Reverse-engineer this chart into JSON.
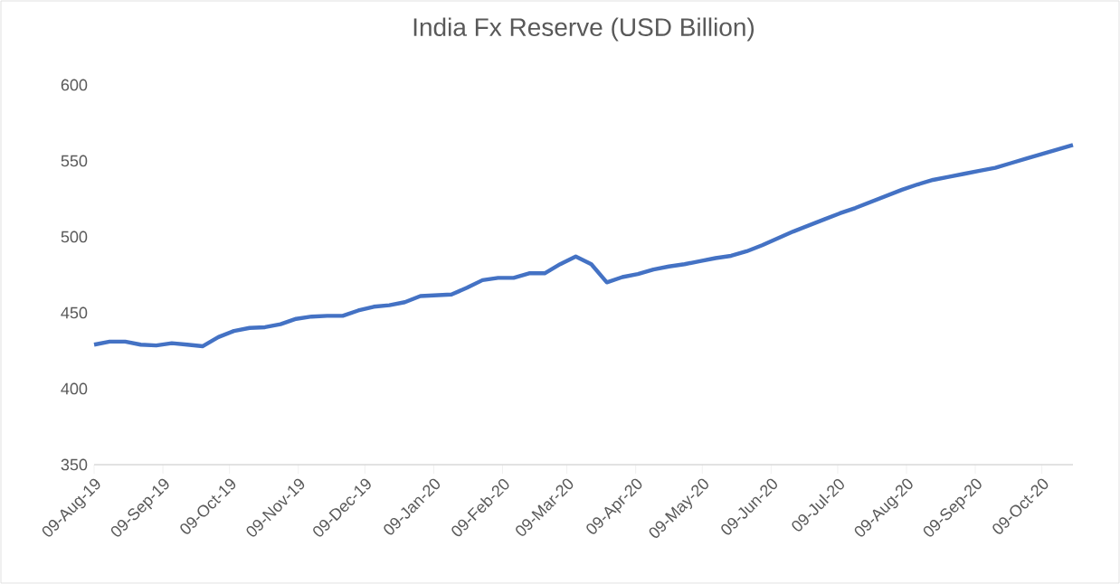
{
  "chart_data": {
    "type": "line",
    "title": "India Fx Reserve (USD Billion)",
    "x": [
      "2019-08-09",
      "2019-08-16",
      "2019-08-23",
      "2019-08-30",
      "2019-09-06",
      "2019-09-13",
      "2019-09-20",
      "2019-09-27",
      "2019-10-04",
      "2019-10-11",
      "2019-10-18",
      "2019-10-25",
      "2019-11-01",
      "2019-11-08",
      "2019-11-15",
      "2019-11-22",
      "2019-11-29",
      "2019-12-06",
      "2019-12-13",
      "2019-12-20",
      "2019-12-27",
      "2020-01-03",
      "2020-01-10",
      "2020-01-17",
      "2020-01-24",
      "2020-01-31",
      "2020-02-07",
      "2020-02-14",
      "2020-02-21",
      "2020-02-28",
      "2020-03-06",
      "2020-03-13",
      "2020-03-20",
      "2020-03-27",
      "2020-04-03",
      "2020-04-10",
      "2020-04-17",
      "2020-04-24",
      "2020-05-01",
      "2020-05-08",
      "2020-05-15",
      "2020-05-22",
      "2020-05-29",
      "2020-06-05",
      "2020-06-12",
      "2020-06-19",
      "2020-06-26",
      "2020-07-03",
      "2020-07-10",
      "2020-07-17",
      "2020-07-24",
      "2020-07-31",
      "2020-08-07",
      "2020-08-14",
      "2020-08-21",
      "2020-08-28",
      "2020-09-04",
      "2020-09-11",
      "2020-09-18",
      "2020-09-25",
      "2020-10-02",
      "2020-10-09",
      "2020-10-16",
      "2020-10-23"
    ],
    "series": [
      {
        "color": "#4472c4",
        "values": [
          429,
          431,
          431,
          429,
          428.5,
          430,
          429,
          428,
          434,
          438,
          440,
          440.5,
          442.5,
          446,
          447.5,
          448,
          448,
          451.5,
          454,
          455,
          457,
          461,
          461.5,
          462,
          466.5,
          471.5,
          473,
          473,
          476,
          476,
          482,
          487,
          482,
          470,
          473.5,
          475.5,
          478.5,
          480.5,
          482,
          484,
          486,
          487.5,
          490.5,
          494.5,
          499,
          503.5,
          507.5,
          511.5,
          515.5,
          519,
          523,
          527,
          531,
          534.5,
          537.5,
          539.5,
          541.5,
          543.5,
          545.5,
          548.5,
          551.5,
          554.5,
          557.5,
          560.5
        ]
      }
    ],
    "xlim": [
      "2019-08-09",
      "2020-10-23"
    ],
    "xticks": [
      {
        "value": "2019-08-09",
        "label": "09-Aug-19"
      },
      {
        "value": "2019-09-09",
        "label": "09-Sep-19"
      },
      {
        "value": "2019-10-09",
        "label": "09-Oct-19"
      },
      {
        "value": "2019-11-09",
        "label": "09-Nov-19"
      },
      {
        "value": "2019-12-09",
        "label": "09-Dec-19"
      },
      {
        "value": "2020-01-09",
        "label": "09-Jan-20"
      },
      {
        "value": "2020-02-09",
        "label": "09-Feb-20"
      },
      {
        "value": "2020-03-09",
        "label": "09-Mar-20"
      },
      {
        "value": "2020-04-09",
        "label": "09-Apr-20"
      },
      {
        "value": "2020-05-09",
        "label": "09-May-20"
      },
      {
        "value": "2020-06-09",
        "label": "09-Jun-20"
      },
      {
        "value": "2020-07-09",
        "label": "09-Jul-20"
      },
      {
        "value": "2020-08-09",
        "label": "09-Aug-20"
      },
      {
        "value": "2020-09-09",
        "label": "09-Sep-20"
      },
      {
        "value": "2020-10-09",
        "label": "09-Oct-20"
      }
    ],
    "ylim": [
      350,
      600
    ],
    "yticks": [
      350,
      400,
      450,
      500,
      550,
      600
    ],
    "grid": false,
    "legend": false,
    "marker": "none",
    "line_style": "solid"
  }
}
